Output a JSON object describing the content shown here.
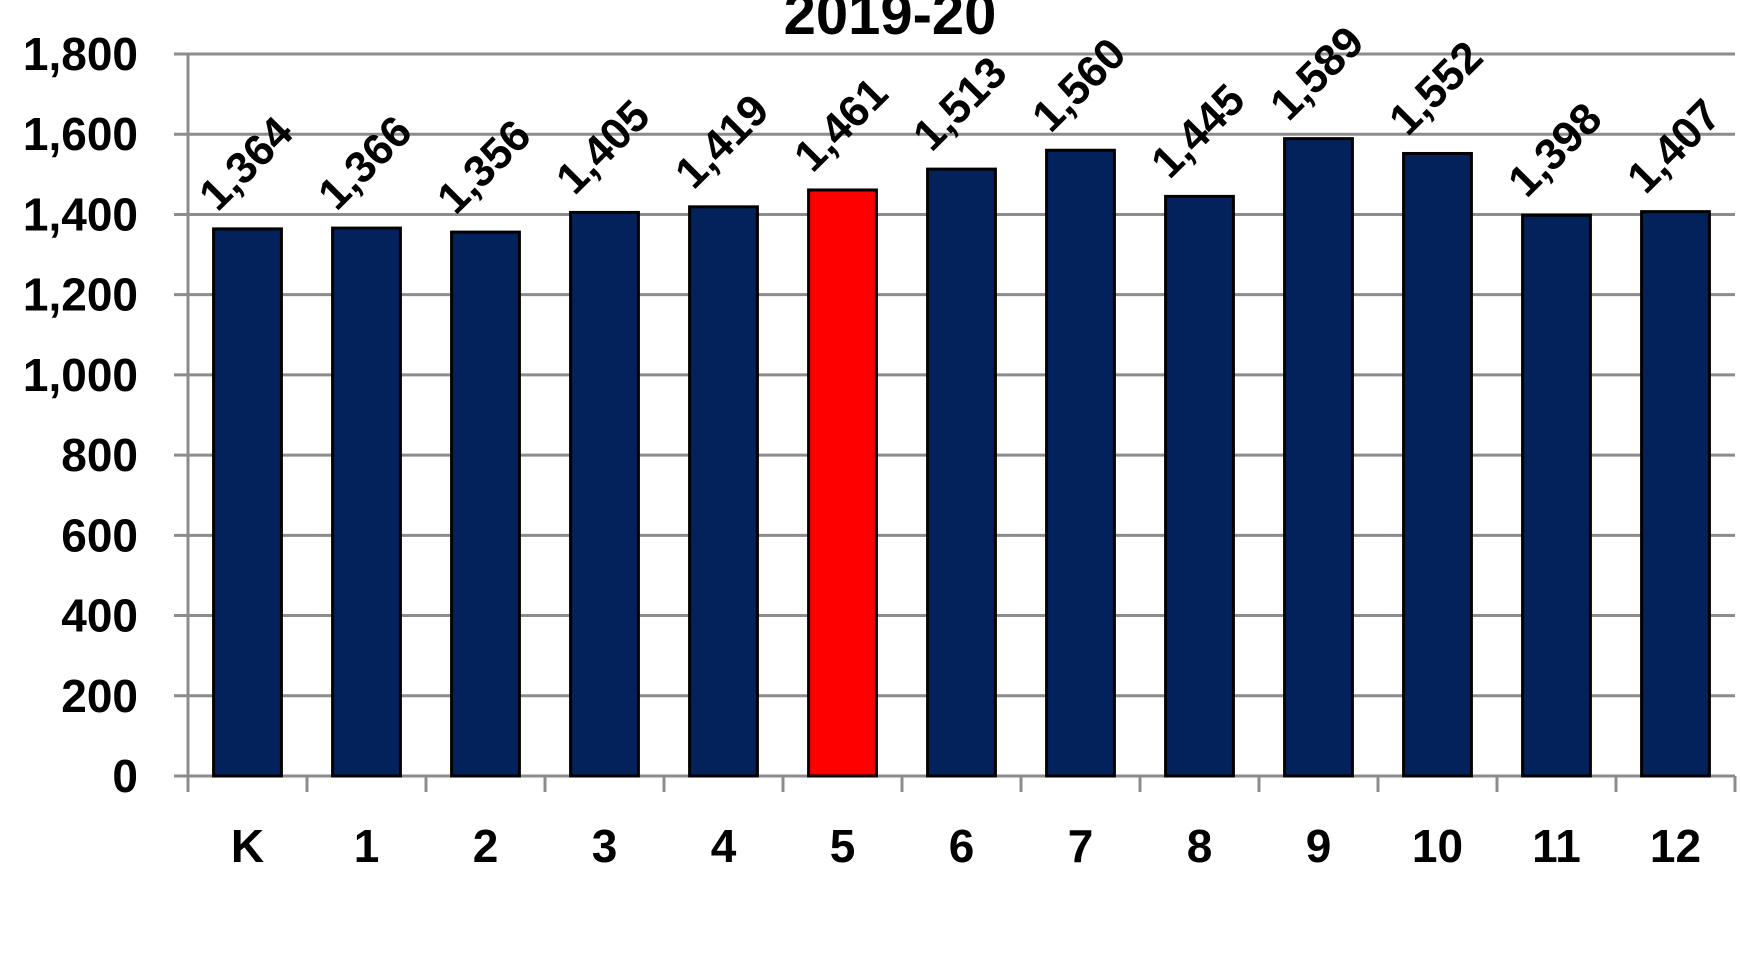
{
  "chart_data": {
    "type": "bar",
    "title": "2019-20",
    "xlabel": "",
    "ylabel": "",
    "categories": [
      "K",
      "1",
      "2",
      "3",
      "4",
      "5",
      "6",
      "7",
      "8",
      "9",
      "10",
      "11",
      "12"
    ],
    "values": [
      1364,
      1366,
      1356,
      1405,
      1419,
      1461,
      1513,
      1560,
      1445,
      1589,
      1552,
      1398,
      1407
    ],
    "value_labels": [
      "1,364",
      "1,366",
      "1,356",
      "1,405",
      "1,419",
      "1,461",
      "1,513",
      "1,560",
      "1,445",
      "1,589",
      "1,552",
      "1,398",
      "1,407"
    ],
    "ylim": [
      0,
      1800
    ],
    "yticks": [
      0,
      200,
      400,
      600,
      800,
      1000,
      1200,
      1400,
      1600,
      1800
    ],
    "ytick_labels": [
      "0",
      "200",
      "400",
      "600",
      "800",
      "1,000",
      "1,200",
      "1,400",
      "1,600",
      "1,800"
    ],
    "grid": true,
    "legend": "none",
    "highlight_category": "5",
    "colors": {
      "bar": "#03215b",
      "highlight": "#ff0000",
      "bar_edge": "#000000",
      "grid": "#8c8c8c",
      "axis": "#8c8c8c"
    }
  }
}
